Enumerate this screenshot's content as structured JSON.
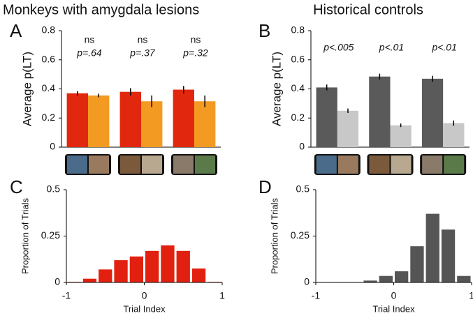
{
  "headers": [
    "Monkeys with amygdala lesions",
    "Historical controls"
  ],
  "chart_data": [
    {
      "type": "bar",
      "panel": "A",
      "ylabel": "Average  p(LT)",
      "categories": [
        null,
        null,
        null
      ],
      "series": [
        {
          "color": "#e2270f",
          "values": [
            0.37,
            0.38,
            0.395
          ],
          "errors": [
            0.015,
            0.025,
            0.025
          ]
        },
        {
          "color": "#f29a22",
          "values": [
            0.355,
            0.315,
            0.315
          ],
          "errors": [
            0.012,
            0.04,
            0.04
          ]
        }
      ],
      "annotations": [
        [
          "ns",
          "p=.64"
        ],
        [
          "ns",
          "p=.37"
        ],
        [
          "ns",
          "p=.32"
        ]
      ],
      "ylim": [
        0,
        0.8
      ],
      "yticks": [
        0,
        0.2,
        0.4,
        0.6,
        0.8
      ]
    },
    {
      "type": "bar",
      "panel": "B",
      "ylabel": "Average  p(LT)",
      "categories": [
        null,
        null,
        null
      ],
      "series": [
        {
          "color": "#5a5a5a",
          "values": [
            0.41,
            0.485,
            0.47
          ],
          "errors": [
            0.02,
            0.02,
            0.02
          ]
        },
        {
          "color": "#c8c8c8",
          "values": [
            0.25,
            0.15,
            0.165
          ],
          "errors": [
            0.015,
            0.012,
            0.018
          ]
        }
      ],
      "annotations": [
        [
          "p<.005"
        ],
        [
          "p<.01"
        ],
        [
          "p<.01"
        ]
      ],
      "ylim": [
        0,
        0.8
      ],
      "yticks": [
        0,
        0.2,
        0.4,
        0.6,
        0.8
      ]
    },
    {
      "type": "histogram",
      "panel": "C",
      "xlabel": "Trial Index",
      "ylabel": "Proportion of Trials",
      "color": "#e2200f",
      "bins": [
        -1,
        -0.8,
        -0.6,
        -0.4,
        -0.2,
        0,
        0.2,
        0.4,
        0.6,
        0.8,
        1
      ],
      "values": [
        0.003,
        0.02,
        0.07,
        0.12,
        0.14,
        0.17,
        0.2,
        0.17,
        0.075,
        0.003
      ],
      "xlim": [
        -1,
        1
      ],
      "xticks": [
        -1,
        0,
        1
      ],
      "ylim": [
        0,
        0.5
      ],
      "yticks": [
        0,
        0.25,
        0.5
      ]
    },
    {
      "type": "histogram",
      "panel": "D",
      "xlabel": "Trial Index",
      "ylabel": "Proportion of Trials",
      "color": "#555555",
      "bins": [
        -1,
        -0.8,
        -0.6,
        -0.4,
        -0.2,
        0,
        0.2,
        0.4,
        0.6,
        0.8,
        1
      ],
      "values": [
        0,
        0.002,
        0.002,
        0.01,
        0.035,
        0.06,
        0.195,
        0.37,
        0.285,
        0.035
      ],
      "xlim": [
        -1,
        1
      ],
      "xticks": [
        -1,
        0,
        1
      ],
      "ylim": [
        0,
        0.5
      ],
      "yticks": [
        0,
        0.25,
        0.5
      ]
    }
  ]
}
